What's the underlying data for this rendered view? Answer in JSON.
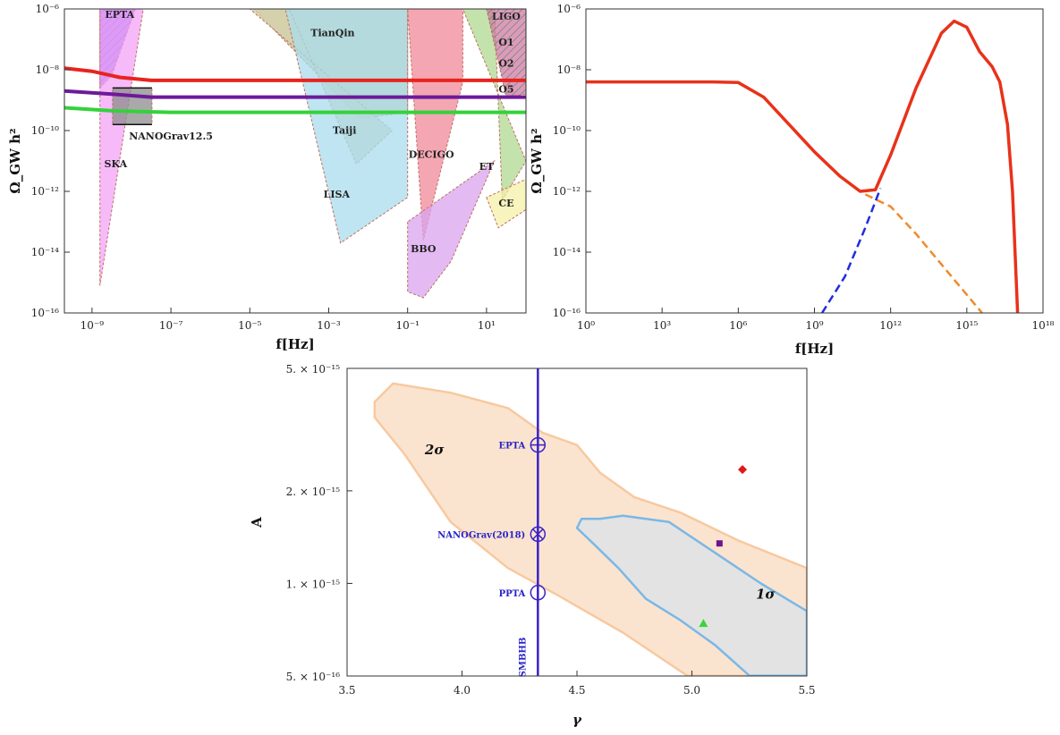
{
  "chart_data": [
    {
      "type": "area",
      "xlabel": "f[Hz]",
      "ylabel": "Ω_GW h²",
      "xlim_log10": [
        -9.7,
        2
      ],
      "ylim_log10": [
        -16,
        -6
      ],
      "x_tick_labels": [
        "10⁻⁹",
        "10⁻⁷",
        "10⁻⁵",
        "10⁻³",
        "10⁻¹",
        "10¹"
      ],
      "y_tick_labels": [
        "10⁻¹⁶",
        "10⁻¹⁴",
        "10⁻¹²",
        "10⁻¹⁰",
        "10⁻⁸",
        "10⁻⁶"
      ],
      "regions": [
        {
          "name": "EPTA",
          "color": "#7a5cf0",
          "hatched": true,
          "vertices_log10": [
            [
              -8.8,
              -6
            ],
            [
              -7.9,
              -6
            ],
            [
              -8.5,
              -8.2
            ],
            [
              -8.8,
              -8.6
            ]
          ]
        },
        {
          "name": "SKA",
          "color": "#f4a3f7",
          "hatched": false,
          "vertices_log10": [
            [
              -8.8,
              -15.1
            ],
            [
              -8.8,
              -6
            ],
            [
              -7.7,
              -6
            ]
          ]
        },
        {
          "name": "NANOGrav12.5",
          "color": "#8c8c8c",
          "hatched": false,
          "vertices_log10": [
            [
              -8.48,
              -8.6
            ],
            [
              -7.48,
              -8.6
            ],
            [
              -7.48,
              -9.8
            ],
            [
              -8.48,
              -9.8
            ]
          ]
        },
        {
          "name": "TianQin",
          "color": "#c8c396",
          "hatched": false,
          "vertices_log10": [
            [
              -4.9,
              -6
            ],
            [
              -1,
              -6
            ],
            [
              -1,
              -9.4
            ],
            [
              -2.2,
              -9.6
            ]
          ]
        },
        {
          "name": "Taiji",
          "color": "#d4d0ac",
          "hatched": false,
          "vertices_log10": [
            [
              -5,
              -6
            ],
            [
              -4,
              -6
            ],
            [
              -2.3,
              -11.1
            ],
            [
              -1.4,
              -10
            ]
          ]
        },
        {
          "name": "LISA",
          "color": "#a8dcec",
          "hatched": false,
          "vertices_log10": [
            [
              -5.2,
              -6
            ],
            [
              -4.1,
              -6
            ],
            [
              -2.7,
              -13.7
            ],
            [
              -1,
              -12.2
            ],
            [
              -1,
              -6
            ]
          ]
        },
        {
          "name": "DECIGO",
          "color": "#f08a9a",
          "hatched": false,
          "vertices_log10": [
            [
              -1,
              -6
            ],
            [
              0.4,
              -6
            ],
            [
              0.4,
              -8.4
            ],
            [
              -0.6,
              -13.6
            ]
          ]
        },
        {
          "name": "BBO",
          "color": "#d9a3ee",
          "hatched": false,
          "vertices_log10": [
            [
              -1,
              -13
            ],
            [
              -1,
              -15.3
            ],
            [
              -0.6,
              -15.5
            ],
            [
              0.1,
              -14.3
            ],
            [
              1.2,
              -11
            ]
          ]
        },
        {
          "name": "ET",
          "color": "#b0d890",
          "hatched": false,
          "vertices_log10": [
            [
              0.4,
              -6
            ],
            [
              1.2,
              -6
            ],
            [
              1.4,
              -12.3
            ],
            [
              2,
              -11
            ]
          ]
        },
        {
          "name": "CE",
          "color": "#f5f0a8",
          "hatched": false,
          "vertices_log10": [
            [
              1.0,
              -12.2
            ],
            [
              1.3,
              -13.2
            ],
            [
              2,
              -12.6
            ],
            [
              2,
              -11.6
            ]
          ]
        },
        {
          "name": "LIGO O1/O2/O5",
          "color": "#d07aa0",
          "hatched": true,
          "vertices_log10": [
            [
              1.0,
              -6
            ],
            [
              2,
              -6
            ],
            [
              2,
              -8.8
            ],
            [
              1.5,
              -8.9
            ]
          ]
        }
      ],
      "series": [
        {
          "color": "#e8231d",
          "points_log10": [
            [
              -9.7,
              -7.95
            ],
            [
              -9.0,
              -8.05
            ],
            [
              -8.3,
              -8.25
            ],
            [
              -7.5,
              -8.35
            ],
            [
              -6,
              -8.35
            ],
            [
              2,
              -8.35
            ]
          ]
        },
        {
          "color": "#6d1a9a",
          "points_log10": [
            [
              -9.7,
              -8.7
            ],
            [
              -8.5,
              -8.8
            ],
            [
              -7.5,
              -8.9
            ],
            [
              -6,
              -8.9
            ],
            [
              2,
              -8.9
            ]
          ]
        },
        {
          "color": "#34d23a",
          "points_log10": [
            [
              -9.7,
              -9.25
            ],
            [
              -8.5,
              -9.35
            ],
            [
              -7,
              -9.4
            ],
            [
              2,
              -9.4
            ]
          ]
        }
      ],
      "labels": [
        {
          "text": "EPTA",
          "xy_log10": [
            -8.3,
            -6.3
          ]
        },
        {
          "text": "TianQin",
          "xy_log10": [
            -2.9,
            -6.9
          ]
        },
        {
          "text": "LIGO",
          "xy_log10": [
            1.5,
            -6.35
          ]
        },
        {
          "text": "O1",
          "xy_log10": [
            1.5,
            -7.2
          ]
        },
        {
          "text": "O2",
          "xy_log10": [
            1.5,
            -7.9
          ]
        },
        {
          "text": "O5",
          "xy_log10": [
            1.5,
            -8.75
          ]
        },
        {
          "text": "NANOGrav12.5",
          "xy_log10": [
            -7.0,
            -10.3
          ]
        },
        {
          "text": "Taiji",
          "xy_log10": [
            -2.6,
            -10.1
          ]
        },
        {
          "text": "SKA",
          "xy_log10": [
            -8.4,
            -11.2
          ]
        },
        {
          "text": "DECIGO",
          "xy_log10": [
            -0.4,
            -10.9
          ]
        },
        {
          "text": "ET",
          "xy_log10": [
            1.0,
            -11.3
          ]
        },
        {
          "text": "LISA",
          "xy_log10": [
            -2.8,
            -12.2
          ]
        },
        {
          "text": "CE",
          "xy_log10": [
            1.5,
            -12.5
          ]
        },
        {
          "text": "BBO",
          "xy_log10": [
            -0.6,
            -14
          ]
        }
      ]
    },
    {
      "type": "line",
      "xlabel": "f[Hz]",
      "ylabel": "Ω_GW h²",
      "xlim_log10": [
        0,
        18
      ],
      "ylim_log10": [
        -16,
        -6
      ],
      "x_tick_labels": [
        "10⁰",
        "10³",
        "10⁶",
        "10⁹",
        "10¹²",
        "10¹⁵",
        "10¹⁸"
      ],
      "y_tick_labels": [
        "10⁻¹⁶",
        "10⁻¹⁴",
        "10⁻¹²",
        "10⁻¹⁰",
        "10⁻⁸",
        "10⁻⁶"
      ],
      "series": [
        {
          "color": "#e8321a",
          "dash": false,
          "points_log10": [
            [
              0,
              -8.4
            ],
            [
              5,
              -8.4
            ],
            [
              6,
              -8.42
            ],
            [
              7,
              -8.9
            ],
            [
              8,
              -9.8
            ],
            [
              9,
              -10.7
            ],
            [
              10,
              -11.5
            ],
            [
              10.8,
              -12.0
            ],
            [
              11.4,
              -11.95
            ],
            [
              12,
              -10.8
            ],
            [
              13,
              -8.6
            ],
            [
              14,
              -6.8
            ],
            [
              14.5,
              -6.4
            ],
            [
              15,
              -6.6
            ],
            [
              15.5,
              -7.4
            ],
            [
              16,
              -7.9
            ],
            [
              16.3,
              -8.4
            ],
            [
              16.6,
              -9.8
            ],
            [
              16.8,
              -12
            ],
            [
              17,
              -16
            ]
          ]
        },
        {
          "color": "#1f2de0",
          "dash": true,
          "points_log10": [
            [
              9.3,
              -16
            ],
            [
              10.2,
              -14.8
            ],
            [
              11.0,
              -13.2
            ],
            [
              11.6,
              -11.9
            ]
          ]
        },
        {
          "color": "#f08a2a",
          "dash": true,
          "points_log10": [
            [
              11.0,
              -12.1
            ],
            [
              12,
              -12.5
            ],
            [
              13,
              -13.4
            ],
            [
              14,
              -14.4
            ],
            [
              15,
              -15.4
            ],
            [
              15.6,
              -16
            ]
          ]
        }
      ]
    },
    {
      "type": "scatter",
      "xlabel": "γ",
      "ylabel": "A",
      "xlim": [
        3.5,
        5.5
      ],
      "ylim_log10": [
        -15.301,
        -14.301
      ],
      "x_tick_labels": [
        "3.5",
        "4.0",
        "4.5",
        "5.0",
        "5.5"
      ],
      "y_tick_labels": [
        "5. × 10⁻¹⁵",
        "2. × 10⁻¹⁵",
        "1. × 10⁻¹⁵",
        "5. × 10⁻¹⁶"
      ],
      "contours": [
        {
          "label": "2σ",
          "fill": "#fbe4cf",
          "stroke": "#f7c9a0",
          "points": [
            [
              3.62,
              -14.41
            ],
            [
              3.7,
              -14.35
            ],
            [
              3.95,
              -14.38
            ],
            [
              4.2,
              -14.43
            ],
            [
              4.35,
              -14.51
            ],
            [
              4.5,
              -14.55
            ],
            [
              4.6,
              -14.64
            ],
            [
              4.75,
              -14.72
            ],
            [
              4.95,
              -14.77
            ],
            [
              5.2,
              -14.86
            ],
            [
              5.5,
              -14.95
            ],
            [
              5.5,
              -15.3
            ],
            [
              4.98,
              -15.3
            ],
            [
              4.7,
              -15.16
            ],
            [
              4.42,
              -15.04
            ],
            [
              4.2,
              -14.95
            ],
            [
              3.95,
              -14.8
            ],
            [
              3.75,
              -14.58
            ],
            [
              3.62,
              -14.46
            ]
          ]
        },
        {
          "label": "1σ",
          "fill": "#e3e3e3",
          "stroke": "#7ab8e6",
          "points": [
            [
              4.52,
              -14.79
            ],
            [
              4.6,
              -14.79
            ],
            [
              4.7,
              -14.78
            ],
            [
              4.9,
              -14.8
            ],
            [
              5.1,
              -14.9
            ],
            [
              5.3,
              -15.0
            ],
            [
              5.5,
              -15.09
            ],
            [
              5.5,
              -15.3
            ],
            [
              5.25,
              -15.3
            ],
            [
              5.1,
              -15.2
            ],
            [
              4.95,
              -15.12
            ],
            [
              4.8,
              -15.05
            ],
            [
              4.68,
              -14.95
            ],
            [
              4.57,
              -14.87
            ],
            [
              4.5,
              -14.82
            ]
          ]
        }
      ],
      "sigma_labels": [
        {
          "text": "2σ",
          "x": 3.88,
          "y_log10": -14.58
        },
        {
          "text": "1σ",
          "x": 5.32,
          "y_log10": -15.05
        }
      ],
      "vertical_line": {
        "label": "SMBHB",
        "x": 4.33,
        "color": "#3a22c8"
      },
      "pta_points": [
        {
          "label": "EPTA",
          "symbol": "circle-plus",
          "x": 4.33,
          "y_log10": -14.55
        },
        {
          "label": "NANOGrav(2018)",
          "symbol": "circle-x",
          "x": 4.33,
          "y_log10": -14.84
        },
        {
          "label": "PPTA",
          "symbol": "circle",
          "x": 4.33,
          "y_log10": -15.03
        }
      ],
      "markers": [
        {
          "shape": "diamond",
          "color": "#e01818",
          "x": 5.22,
          "y_log10": -14.63
        },
        {
          "shape": "square",
          "color": "#6b168e",
          "x": 5.12,
          "y_log10": -14.87
        },
        {
          "shape": "triangle",
          "color": "#3ad43a",
          "x": 5.05,
          "y_log10": -15.13
        }
      ]
    }
  ]
}
